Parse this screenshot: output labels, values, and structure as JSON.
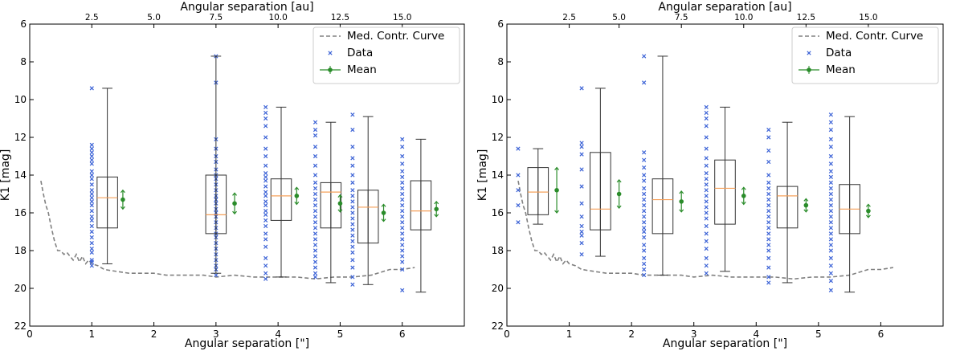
{
  "colors": {
    "curve": "#808080",
    "data": "#3b62d6",
    "mean": "#2a8c2a",
    "median": "#f5a05a",
    "box": "#333333"
  },
  "chart_data": [
    {
      "type": "box",
      "xlabel": "Angular separation [\"]",
      "ylabel": "K1 [mag]",
      "top_xlabel": "Angular separation [au]",
      "xlim": [
        0,
        7
      ],
      "ylim": [
        22,
        6
      ],
      "xticks": [
        0,
        1,
        2,
        3,
        4,
        5,
        6
      ],
      "yticks": [
        6,
        8,
        10,
        12,
        14,
        16,
        18,
        20,
        22
      ],
      "top_xticks": [
        {
          "label": "2.5",
          "x": 1.0
        },
        {
          "label": "5.0",
          "x": 2.0
        },
        {
          "label": "7.5",
          "x": 3.0
        },
        {
          "label": "10.0",
          "x": 4.0
        },
        {
          "label": "12.5",
          "x": 5.0
        },
        {
          "label": "15.0",
          "x": 6.0
        }
      ],
      "legend": [
        "Med. Contr. Curve",
        "Data",
        "Mean"
      ],
      "contrast_curve": [
        [
          0.18,
          14.3
        ],
        [
          0.22,
          15.0
        ],
        [
          0.26,
          15.6
        ],
        [
          0.3,
          16.0
        ],
        [
          0.35,
          16.8
        ],
        [
          0.4,
          17.5
        ],
        [
          0.45,
          18.0
        ],
        [
          0.5,
          18.0
        ],
        [
          0.55,
          18.2
        ],
        [
          0.6,
          18.1
        ],
        [
          0.65,
          18.3
        ],
        [
          0.7,
          18.5
        ],
        [
          0.75,
          18.2
        ],
        [
          0.8,
          18.6
        ],
        [
          0.85,
          18.3
        ],
        [
          0.9,
          18.7
        ],
        [
          0.95,
          18.5
        ],
        [
          1.0,
          18.7
        ],
        [
          1.1,
          18.8
        ],
        [
          1.2,
          19.0
        ],
        [
          1.4,
          19.1
        ],
        [
          1.6,
          19.2
        ],
        [
          1.8,
          19.2
        ],
        [
          2.0,
          19.2
        ],
        [
          2.2,
          19.3
        ],
        [
          2.5,
          19.3
        ],
        [
          2.8,
          19.3
        ],
        [
          3.0,
          19.4
        ],
        [
          3.3,
          19.3
        ],
        [
          3.6,
          19.4
        ],
        [
          4.0,
          19.4
        ],
        [
          4.3,
          19.4
        ],
        [
          4.6,
          19.5
        ],
        [
          4.9,
          19.4
        ],
        [
          5.2,
          19.4
        ],
        [
          5.5,
          19.3
        ],
        [
          5.8,
          19.0
        ],
        [
          6.0,
          19.0
        ],
        [
          6.2,
          18.9
        ]
      ],
      "groups": [
        {
          "x": 1.0,
          "data": [
            9.4,
            12.4,
            12.6,
            12.8,
            13.0,
            13.2,
            13.4,
            13.8,
            14.0,
            14.2,
            14.5,
            14.8,
            15.0,
            15.2,
            15.4,
            15.6,
            15.9,
            16.2,
            16.4,
            16.7,
            17.0,
            17.3,
            17.6,
            17.9,
            18.1,
            18.5,
            18.8,
            18.6
          ]
        },
        {
          "x": 3.0,
          "data": [
            7.7,
            9.1,
            12.1,
            12.6,
            13.0,
            13.3,
            13.7,
            14.0,
            14.2,
            14.5,
            14.8,
            15.1,
            15.3,
            15.5,
            15.8,
            16.0,
            16.2,
            16.5,
            16.8,
            17.1,
            17.3,
            17.6,
            17.9,
            18.2,
            18.5,
            18.8,
            19.0,
            19.3
          ]
        },
        {
          "x": 3.8,
          "data": [
            10.4,
            10.7,
            11.0,
            11.4,
            12.0,
            12.6,
            13.0,
            13.5,
            13.9,
            14.1,
            14.3,
            14.6,
            14.9,
            15.1,
            15.4,
            15.6,
            15.9,
            16.1,
            16.4,
            16.7,
            17.1,
            17.4,
            17.8,
            18.4,
            18.8,
            19.2,
            19.5
          ]
        },
        {
          "x": 4.6,
          "data": [
            11.2,
            11.6,
            11.9,
            12.5,
            13.0,
            13.5,
            14.0,
            14.4,
            14.7,
            15.0,
            15.3,
            15.6,
            15.9,
            16.2,
            16.5,
            16.8,
            17.1,
            17.4,
            17.7,
            18.0,
            18.3,
            18.6,
            18.9,
            19.2,
            19.4
          ]
        },
        {
          "x": 5.2,
          "data": [
            10.8,
            11.6,
            12.5,
            13.1,
            13.5,
            14.0,
            14.4,
            14.8,
            15.1,
            15.4,
            15.7,
            16.0,
            16.3,
            16.6,
            16.9,
            17.2,
            17.5,
            17.8,
            18.1,
            18.5,
            18.9,
            19.4,
            19.8
          ]
        },
        {
          "x": 6.0,
          "data": [
            12.1,
            12.5,
            13.0,
            13.4,
            13.8,
            14.1,
            14.4,
            14.7,
            15.0,
            15.3,
            15.6,
            15.9,
            16.2,
            16.5,
            16.8,
            17.1,
            17.4,
            17.7,
            18.0,
            18.3,
            18.6,
            19.0,
            20.1
          ]
        }
      ],
      "boxes": [
        {
          "pos": 1.25,
          "q1": 14.1,
          "median": 15.2,
          "q3": 16.8,
          "whislo": 9.4,
          "whishi": 18.7,
          "mean_x": 1.5,
          "mean": 15.3,
          "mean_err": 0.5
        },
        {
          "pos": 3.0,
          "q1": 14.0,
          "median": 16.1,
          "q3": 17.1,
          "whislo": 7.7,
          "whishi": 19.2,
          "mean_x": 3.3,
          "mean": 15.5,
          "mean_err": 0.55
        },
        {
          "pos": 4.05,
          "q1": 14.2,
          "median": 15.1,
          "q3": 16.4,
          "whislo": 10.4,
          "whishi": 19.4,
          "mean_x": 4.3,
          "mean": 15.1,
          "mean_err": 0.45
        },
        {
          "pos": 4.85,
          "q1": 14.4,
          "median": 14.9,
          "q3": 16.8,
          "whislo": 11.2,
          "whishi": 19.7,
          "mean_x": 5.0,
          "mean": 15.5,
          "mean_err": 0.45
        },
        {
          "pos": 5.45,
          "q1": 14.8,
          "median": 15.7,
          "q3": 17.6,
          "whislo": 10.9,
          "whishi": 19.8,
          "mean_x": 5.7,
          "mean": 16.0,
          "mean_err": 0.45
        },
        {
          "pos": 6.3,
          "q1": 14.3,
          "median": 15.9,
          "q3": 16.9,
          "whislo": 12.1,
          "whishi": 20.2,
          "mean_x": 6.55,
          "mean": 15.8,
          "mean_err": 0.4
        }
      ]
    },
    {
      "type": "box",
      "xlabel": "Angular separation [\"]",
      "ylabel": "K1 [mag]",
      "top_xlabel": "Angular separation [au]",
      "xlim": [
        0,
        7
      ],
      "ylim": [
        22,
        6
      ],
      "xticks": [
        0,
        1,
        2,
        3,
        4,
        5,
        6
      ],
      "yticks": [
        6,
        8,
        10,
        12,
        14,
        16,
        18,
        20,
        22
      ],
      "top_xticks": [
        {
          "label": "2.5",
          "x": 1.0
        },
        {
          "label": "5.0",
          "x": 1.8
        },
        {
          "label": "7.5",
          "x": 2.8
        },
        {
          "label": "10.0",
          "x": 3.8
        },
        {
          "label": "12.5",
          "x": 4.8
        },
        {
          "label": "15.0",
          "x": 5.8
        }
      ],
      "legend": [
        "Med. Contr. Curve",
        "Data",
        "Mean"
      ],
      "contrast_curve": [
        [
          0.18,
          14.3
        ],
        [
          0.22,
          15.0
        ],
        [
          0.26,
          15.6
        ],
        [
          0.3,
          16.0
        ],
        [
          0.35,
          16.8
        ],
        [
          0.4,
          17.5
        ],
        [
          0.45,
          18.0
        ],
        [
          0.5,
          18.0
        ],
        [
          0.55,
          18.2
        ],
        [
          0.6,
          18.1
        ],
        [
          0.65,
          18.3
        ],
        [
          0.7,
          18.5
        ],
        [
          0.75,
          18.2
        ],
        [
          0.8,
          18.6
        ],
        [
          0.85,
          18.3
        ],
        [
          0.9,
          18.7
        ],
        [
          0.95,
          18.5
        ],
        [
          1.0,
          18.7
        ],
        [
          1.1,
          18.8
        ],
        [
          1.2,
          19.0
        ],
        [
          1.4,
          19.1
        ],
        [
          1.6,
          19.2
        ],
        [
          1.8,
          19.2
        ],
        [
          2.0,
          19.2
        ],
        [
          2.2,
          19.3
        ],
        [
          2.5,
          19.3
        ],
        [
          2.8,
          19.3
        ],
        [
          3.0,
          19.4
        ],
        [
          3.3,
          19.3
        ],
        [
          3.6,
          19.4
        ],
        [
          4.0,
          19.4
        ],
        [
          4.3,
          19.4
        ],
        [
          4.6,
          19.5
        ],
        [
          4.9,
          19.4
        ],
        [
          5.2,
          19.4
        ],
        [
          5.5,
          19.3
        ],
        [
          5.8,
          19.0
        ],
        [
          6.0,
          19.0
        ],
        [
          6.2,
          18.9
        ]
      ],
      "groups": [
        {
          "x": 0.18,
          "data": [
            12.6,
            14.0,
            14.8,
            15.6,
            16.5
          ]
        },
        {
          "x": 1.2,
          "data": [
            9.4,
            12.3,
            12.5,
            12.9,
            13.7,
            14.6,
            15.5,
            16.2,
            16.7,
            17.0,
            17.2,
            17.6,
            18.2
          ]
        },
        {
          "x": 2.2,
          "data": [
            7.7,
            9.1,
            12.8,
            13.2,
            13.6,
            14.0,
            14.3,
            14.7,
            15.0,
            15.3,
            15.6,
            15.9,
            16.2,
            16.5,
            16.8,
            17.0,
            17.3,
            17.7,
            18.0,
            18.4,
            18.7,
            19.0,
            19.3
          ]
        },
        {
          "x": 3.2,
          "data": [
            10.4,
            10.7,
            11.0,
            11.4,
            12.0,
            12.6,
            13.1,
            13.5,
            13.9,
            14.2,
            14.5,
            14.8,
            15.1,
            15.4,
            15.7,
            16.0,
            16.3,
            16.7,
            17.1,
            17.5,
            17.9,
            18.4,
            18.8,
            19.2
          ]
        },
        {
          "x": 4.2,
          "data": [
            11.6,
            12.0,
            12.7,
            13.3,
            14.0,
            14.4,
            14.7,
            15.0,
            15.3,
            15.6,
            15.9,
            16.2,
            16.5,
            16.8,
            17.1,
            17.4,
            17.7,
            18.0,
            18.4,
            18.9,
            19.4,
            19.7
          ]
        },
        {
          "x": 5.2,
          "data": [
            10.8,
            11.2,
            11.6,
            12.1,
            12.5,
            13.0,
            13.4,
            13.8,
            14.1,
            14.4,
            14.7,
            15.0,
            15.3,
            15.6,
            15.9,
            16.2,
            16.5,
            16.8,
            17.1,
            17.4,
            17.7,
            18.0,
            18.4,
            18.8,
            19.2,
            19.6,
            20.1
          ]
        }
      ],
      "boxes": [
        {
          "pos": 0.5,
          "q1": 13.6,
          "median": 14.9,
          "q3": 16.1,
          "whislo": 12.6,
          "whishi": 16.6,
          "mean_x": 0.8,
          "mean": 14.8,
          "mean_err": 1.2
        },
        {
          "pos": 1.5,
          "q1": 12.8,
          "median": 15.8,
          "q3": 16.9,
          "whislo": 9.4,
          "whishi": 18.3,
          "mean_x": 1.8,
          "mean": 15.0,
          "mean_err": 0.75
        },
        {
          "pos": 2.5,
          "q1": 14.2,
          "median": 15.3,
          "q3": 17.1,
          "whislo": 7.7,
          "whishi": 19.3,
          "mean_x": 2.8,
          "mean": 15.4,
          "mean_err": 0.55
        },
        {
          "pos": 3.5,
          "q1": 13.2,
          "median": 14.7,
          "q3": 16.6,
          "whislo": 10.4,
          "whishi": 19.1,
          "mean_x": 3.8,
          "mean": 15.1,
          "mean_err": 0.45
        },
        {
          "pos": 4.5,
          "q1": 14.6,
          "median": 15.1,
          "q3": 16.8,
          "whislo": 11.2,
          "whishi": 19.7,
          "mean_x": 4.8,
          "mean": 15.6,
          "mean_err": 0.35
        },
        {
          "pos": 5.5,
          "q1": 14.5,
          "median": 15.8,
          "q3": 17.1,
          "whislo": 10.9,
          "whishi": 20.2,
          "mean_x": 5.8,
          "mean": 15.9,
          "mean_err": 0.35
        }
      ]
    }
  ]
}
